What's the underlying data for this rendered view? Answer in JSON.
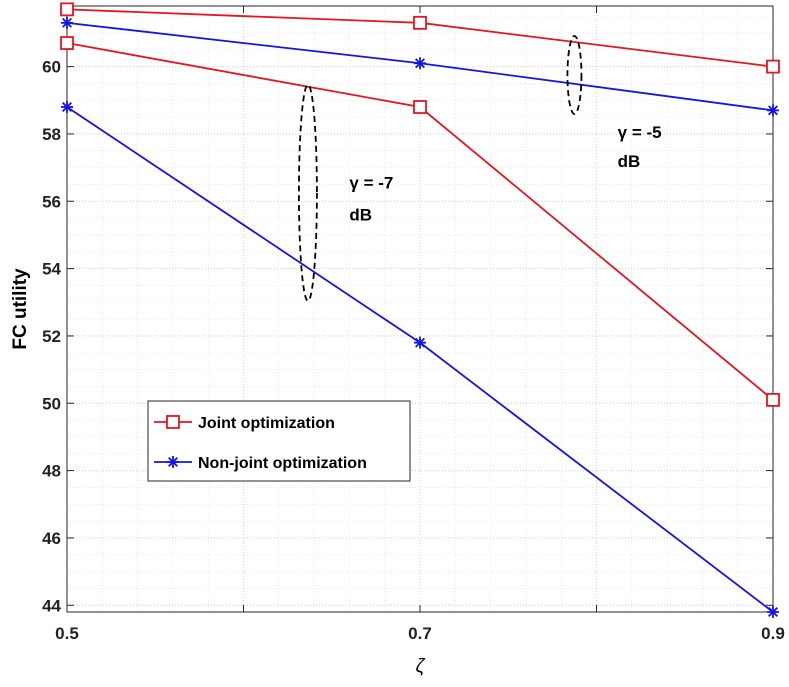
{
  "chart_data": {
    "type": "line",
    "xlabel": "ζ",
    "ylabel": "FC utility",
    "xlim": [
      0.5,
      0.9
    ],
    "ylim": [
      43.8,
      61.8
    ],
    "x_ticks": [
      "0.5",
      "0.7",
      "0.9"
    ],
    "y_ticks": [
      "44",
      "46",
      "48",
      "50",
      "52",
      "54",
      "56",
      "58",
      "60"
    ],
    "grid": true,
    "legend_position": "lower-left",
    "x": [
      0.5,
      0.7,
      0.9
    ],
    "series": [
      {
        "name": "Joint optimization",
        "group": "γ = -5 dB",
        "color": "#e8141e",
        "marker": "square",
        "values": [
          61.7,
          61.3,
          60.0
        ]
      },
      {
        "name": "Non-joint optimization",
        "group": "γ = -5 dB",
        "color": "#1414e6",
        "marker": "asterisk",
        "values": [
          61.3,
          60.1,
          58.7
        ]
      },
      {
        "name": "Joint optimization",
        "group": "γ = -7 dB",
        "color": "#e8141e",
        "marker": "square",
        "values": [
          60.7,
          58.8,
          50.1
        ]
      },
      {
        "name": "Non-joint optimization",
        "group": "γ = -7 dB",
        "color": "#1414e6",
        "marker": "asterisk",
        "values": [
          58.8,
          51.8,
          43.8
        ]
      }
    ],
    "annotations": [
      {
        "line1": "γ = -5",
        "line2": "dB"
      },
      {
        "line1": "γ = -7",
        "line2": "dB"
      }
    ]
  }
}
